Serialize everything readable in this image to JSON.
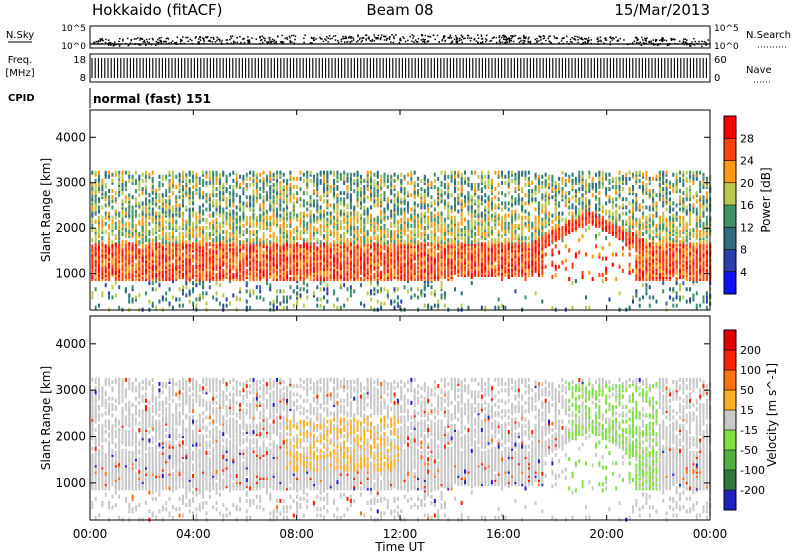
{
  "header": {
    "radar": "Hokkaido (fitACF)",
    "beam": "Beam 08",
    "date": "15/Mar/2013"
  },
  "top_panels": {
    "nsky_label": "N.Sky",
    "nsearch_label": "N.Search",
    "noise_ticks": [
      "10^5",
      "10^0"
    ],
    "freq_label": "Freq.",
    "freq_unit": "[MHz]",
    "freq_ticks": [
      "18",
      "8"
    ],
    "nave_label": "Nave",
    "nave_ticks": [
      "60",
      "0"
    ],
    "cpid_label": "CPID",
    "cpid_value": "normal (fast) 151"
  },
  "chart_data": [
    {
      "type": "heatmap",
      "name": "power",
      "ylabel": "Slant Range [km]",
      "yticks": [
        "1000",
        "2000",
        "3000",
        "4000"
      ],
      "ylim": [
        200,
        4600
      ],
      "xlim": [
        0,
        24
      ],
      "colorbar_label": "Power [dB]",
      "colorbar_ticks": [
        "4",
        "8",
        "12",
        "16",
        "20",
        "24",
        "28"
      ],
      "colorbar_colors": [
        "#1010ff",
        "#2a3fa8",
        "#2e6e7e",
        "#40906a",
        "#b8c850",
        "#ff9a10",
        "#ff4010",
        "#ff0000"
      ],
      "features": [
        {
          "label": "strong band",
          "range_km": [
            900,
            1700
          ],
          "time_h": [
            0,
            24
          ]
        },
        {
          "label": "hump near 19h",
          "range_km": [
            1900,
            2400
          ],
          "time_h": [
            17,
            21
          ]
        }
      ]
    },
    {
      "type": "heatmap",
      "name": "velocity",
      "ylabel": "Slant Range [km]",
      "yticks": [
        "1000",
        "2000",
        "3000",
        "4000"
      ],
      "ylim": [
        200,
        4600
      ],
      "xlim": [
        0,
        24
      ],
      "colorbar_label": "Velocity [m s^-1]",
      "colorbar_ticks": [
        "200",
        "100",
        "50",
        "15",
        "-15",
        "-50",
        "-100",
        "-200"
      ],
      "colorbar_colors": [
        "#2020c0",
        "#307840",
        "#50b040",
        "#80e040",
        "#c8c8c8",
        "#ffb020",
        "#ff7010",
        "#ff2000",
        "#e00000"
      ]
    }
  ],
  "x_axis": {
    "ticks": [
      "00:00",
      "04:00",
      "08:00",
      "12:00",
      "16:00",
      "20:00",
      "00:00"
    ],
    "label": "Time UT"
  }
}
